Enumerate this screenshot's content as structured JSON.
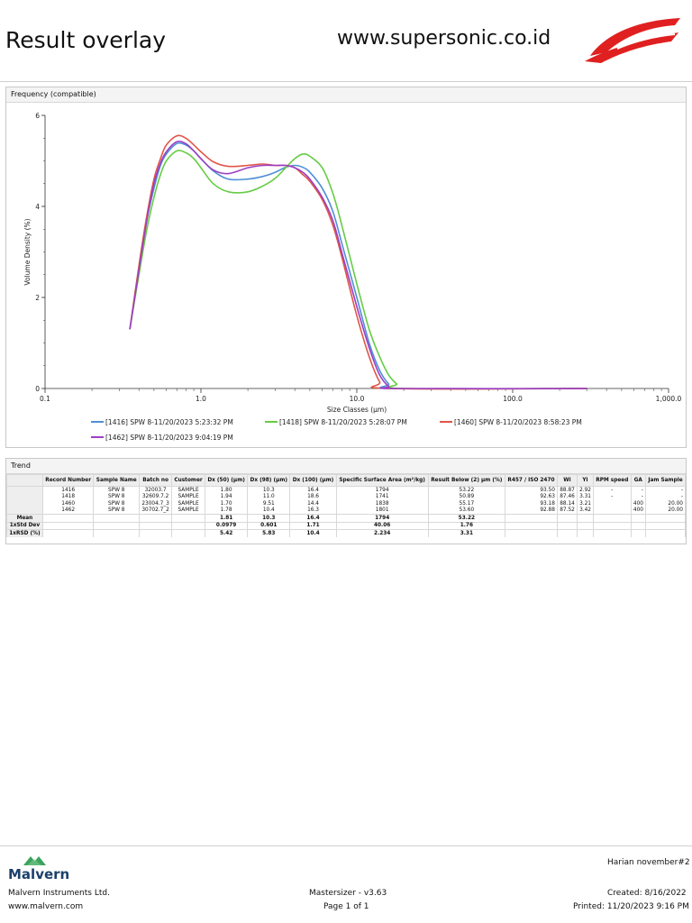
{
  "header": {
    "title": "Result overlay",
    "website": "www.supersonic.co.id"
  },
  "frequency_panel": {
    "title": "Frequency (compatible)"
  },
  "chart_data": {
    "type": "line",
    "xlabel": "Size Classes (μm)",
    "ylabel": "Volume Density (%)",
    "x_scale": "log",
    "xlim": [
      0.1,
      1000
    ],
    "ylim": [
      0,
      6
    ],
    "x_ticks": [
      "0.1",
      "1.0",
      "10.0",
      "100.0",
      "1,000.0"
    ],
    "y_ticks": [
      "0",
      "2",
      "4",
      "6"
    ],
    "grid": false,
    "legend_position": "bottom",
    "series": [
      {
        "name": "[1416] SPW 8-11/20/2023 5:23:32 PM",
        "color": "#4f8fd6",
        "points": [
          [
            0.35,
            1.3
          ],
          [
            0.4,
            2.6
          ],
          [
            0.45,
            3.7
          ],
          [
            0.5,
            4.4
          ],
          [
            0.55,
            4.9
          ],
          [
            0.6,
            5.15
          ],
          [
            0.7,
            5.38
          ],
          [
            0.8,
            5.35
          ],
          [
            0.9,
            5.22
          ],
          [
            1.0,
            5.05
          ],
          [
            1.2,
            4.78
          ],
          [
            1.5,
            4.6
          ],
          [
            2.0,
            4.6
          ],
          [
            2.5,
            4.66
          ],
          [
            3.0,
            4.75
          ],
          [
            3.5,
            4.86
          ],
          [
            4.0,
            4.9
          ],
          [
            4.5,
            4.86
          ],
          [
            5.0,
            4.75
          ],
          [
            6.0,
            4.4
          ],
          [
            7.0,
            3.9
          ],
          [
            8.0,
            3.2
          ],
          [
            10.0,
            2.0
          ],
          [
            12.0,
            1.0
          ],
          [
            14.0,
            0.4
          ],
          [
            16.0,
            0.1
          ],
          [
            18.0,
            0.0
          ],
          [
            300.0,
            0.0
          ]
        ]
      },
      {
        "name": "[1418] SPW 8-11/20/2023 5:28:07 PM",
        "color": "#66cc44",
        "points": [
          [
            0.35,
            1.3
          ],
          [
            0.4,
            2.5
          ],
          [
            0.45,
            3.5
          ],
          [
            0.5,
            4.2
          ],
          [
            0.55,
            4.7
          ],
          [
            0.6,
            5.0
          ],
          [
            0.7,
            5.22
          ],
          [
            0.8,
            5.18
          ],
          [
            0.9,
            5.05
          ],
          [
            1.0,
            4.85
          ],
          [
            1.2,
            4.5
          ],
          [
            1.5,
            4.32
          ],
          [
            2.0,
            4.32
          ],
          [
            2.5,
            4.45
          ],
          [
            3.0,
            4.62
          ],
          [
            3.5,
            4.85
          ],
          [
            4.0,
            5.05
          ],
          [
            4.5,
            5.15
          ],
          [
            5.0,
            5.1
          ],
          [
            6.0,
            4.85
          ],
          [
            7.0,
            4.3
          ],
          [
            8.0,
            3.6
          ],
          [
            10.0,
            2.3
          ],
          [
            12.0,
            1.3
          ],
          [
            14.0,
            0.7
          ],
          [
            16.0,
            0.3
          ],
          [
            18.0,
            0.1
          ],
          [
            20.0,
            0.0
          ],
          [
            300.0,
            0.0
          ]
        ]
      },
      {
        "name": "[1460] SPW 8-11/20/2023 8:58:23 PM",
        "color": "#e05548",
        "points": [
          [
            0.35,
            1.3
          ],
          [
            0.4,
            2.7
          ],
          [
            0.45,
            3.8
          ],
          [
            0.5,
            4.6
          ],
          [
            0.55,
            5.05
          ],
          [
            0.6,
            5.35
          ],
          [
            0.7,
            5.55
          ],
          [
            0.8,
            5.5
          ],
          [
            0.9,
            5.35
          ],
          [
            1.0,
            5.2
          ],
          [
            1.2,
            4.98
          ],
          [
            1.5,
            4.88
          ],
          [
            2.0,
            4.9
          ],
          [
            2.5,
            4.93
          ],
          [
            3.0,
            4.9
          ],
          [
            3.5,
            4.9
          ],
          [
            4.0,
            4.85
          ],
          [
            4.5,
            4.7
          ],
          [
            5.0,
            4.55
          ],
          [
            6.0,
            4.15
          ],
          [
            7.0,
            3.6
          ],
          [
            8.0,
            2.9
          ],
          [
            10.0,
            1.6
          ],
          [
            12.0,
            0.7
          ],
          [
            14.0,
            0.15
          ],
          [
            16.0,
            0.0
          ],
          [
            300.0,
            0.0
          ]
        ]
      },
      {
        "name": "[1462] SPW 8-11/20/2023 9:04:19 PM",
        "color": "#9b3fc4",
        "points": [
          [
            0.35,
            1.3
          ],
          [
            0.4,
            2.6
          ],
          [
            0.45,
            3.7
          ],
          [
            0.5,
            4.5
          ],
          [
            0.55,
            4.95
          ],
          [
            0.6,
            5.2
          ],
          [
            0.7,
            5.42
          ],
          [
            0.8,
            5.38
          ],
          [
            0.9,
            5.22
          ],
          [
            1.0,
            5.05
          ],
          [
            1.2,
            4.8
          ],
          [
            1.5,
            4.72
          ],
          [
            2.0,
            4.85
          ],
          [
            2.5,
            4.9
          ],
          [
            3.0,
            4.9
          ],
          [
            3.5,
            4.9
          ],
          [
            4.0,
            4.85
          ],
          [
            4.5,
            4.75
          ],
          [
            5.0,
            4.6
          ],
          [
            6.0,
            4.2
          ],
          [
            7.0,
            3.7
          ],
          [
            8.0,
            3.0
          ],
          [
            10.0,
            1.8
          ],
          [
            12.0,
            0.9
          ],
          [
            14.0,
            0.3
          ],
          [
            16.0,
            0.05
          ],
          [
            18.0,
            0.0
          ],
          [
            300.0,
            0.0
          ]
        ]
      }
    ]
  },
  "trend": {
    "title": "Trend",
    "headers": [
      "Record Number",
      "Sample Name",
      "Batch no",
      "Customer",
      "Dx (50) (μm)",
      "Dx (98) (μm)",
      "Dx (100) (μm)",
      "Specific Surface Area (m²/kg)",
      "Result Below (2) μm (%)",
      "R457 / ISO 2470",
      "Wi",
      "Yi",
      "RPM speed",
      "GA",
      "Jam Sample"
    ],
    "rows": [
      [
        "1416",
        "SPW 8",
        "32003.7",
        "SAMPLE",
        "1.80",
        "10.3",
        "16.4",
        "1794",
        "53.22",
        "93.50",
        "88.87",
        "2.92",
        "-",
        "-",
        "-"
      ],
      [
        "1418",
        "SPW 8",
        "32609.7.2",
        "SAMPLE",
        "1.94",
        "11.0",
        "18.6",
        "1741",
        "50.89",
        "92.63",
        "87.46",
        "3.31",
        "-",
        "-",
        "-"
      ],
      [
        "1460",
        "SPW 8",
        "23004.7_3",
        "SAMPLE",
        "1.70",
        "9.51",
        "14.4",
        "1838",
        "55.17",
        "93.18",
        "88.14",
        "3.21",
        "",
        "400",
        "20.00"
      ],
      [
        "1462",
        "SPW 8",
        "30702.7_2",
        "SAMPLE",
        "1.78",
        "10.4",
        "16.3",
        "1801",
        "53.60",
        "92.88",
        "87.52",
        "3.42",
        "",
        "400",
        "20.00"
      ]
    ],
    "stats": [
      {
        "label": "Mean",
        "values": [
          "1.81",
          "10.3",
          "16.4",
          "1794",
          "53.22"
        ]
      },
      {
        "label": "1xStd Dev",
        "values": [
          "0.0979",
          "0.601",
          "1.71",
          "40.06",
          "1.76"
        ]
      },
      {
        "label": "1xRSD (%)",
        "values": [
          "5.42",
          "5.83",
          "10.4",
          "2.234",
          "3.31"
        ]
      }
    ]
  },
  "footer": {
    "company_logo_text": "Malvern",
    "company": "Malvern Instruments Ltd.",
    "company_url": "www.malvern.com",
    "software": "Mastersizer - v3.63",
    "page": "Page 1 of 1",
    "report_name": "Harian november#2",
    "created": "Created:  8/16/2022",
    "printed": "Printed: 11/20/2023 9:16 PM"
  }
}
